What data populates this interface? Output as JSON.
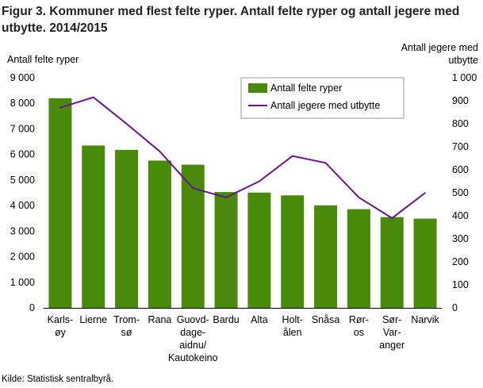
{
  "title": "Figur 3. Kommuner med flest felte ryper. Antall felte ryper og antall jegere med utbytte. 2014/2015",
  "source": "Kilde: Statistisk sentralbyrå.",
  "colors": {
    "bar": "#4a8a0b",
    "line": "#66168c",
    "axis": "#000000",
    "grid": "#ffffff"
  },
  "chart_data": {
    "type": "bar",
    "title": "Figur 3. Kommuner med flest felte ryper. Antall felte ryper og antall jegere med utbytte. 2014/2015",
    "ylabel": "Antall felte ryper",
    "y2label": "Antall jegere med utbytte",
    "ylim": [
      0,
      9000
    ],
    "y2lim": [
      0,
      1000
    ],
    "yticks": [
      "0",
      "1 000",
      "2 000",
      "3 000",
      "4 000",
      "5 000",
      "6 000",
      "7 000",
      "8 000",
      "9 000"
    ],
    "y2ticks": [
      "0",
      "100",
      "200",
      "300",
      "400",
      "500",
      "600",
      "700",
      "800",
      "900",
      "1 000"
    ],
    "categories": [
      "Karlsøy",
      "Lierne",
      "Tromsø",
      "Rana",
      "Guovdageaidnu/Kautokeino",
      "Bardu",
      "Alta",
      "Holtålen",
      "Snåsa",
      "Røros",
      "Sør-Varanger",
      "Narvik"
    ],
    "category_lines": [
      [
        "Karls-",
        "øy"
      ],
      [
        "Lierne"
      ],
      [
        "Trom-",
        "sø"
      ],
      [
        "Rana"
      ],
      [
        "Guovd-",
        "dage-",
        "aidnu/",
        "Kautokeino"
      ],
      [
        "Bardu"
      ],
      [
        "Alta"
      ],
      [
        "Holt-",
        "ålen"
      ],
      [
        "Snåsa"
      ],
      [
        "Rør-",
        "os"
      ],
      [
        "Sør-",
        "Var-",
        "anger"
      ],
      [
        "Narvik"
      ]
    ],
    "series": [
      {
        "name": "Antall felte ryper",
        "type": "bar",
        "axis": "left",
        "values": [
          8200,
          6350,
          6180,
          5760,
          5600,
          4530,
          4510,
          4400,
          4010,
          3860,
          3550,
          3490
        ]
      },
      {
        "name": "Antall jegere med utbytte",
        "type": "line",
        "axis": "right",
        "values": [
          870,
          915,
          800,
          680,
          520,
          480,
          550,
          660,
          630,
          480,
          390,
          500
        ]
      }
    ],
    "legend_position": "top-right",
    "grid": false
  }
}
